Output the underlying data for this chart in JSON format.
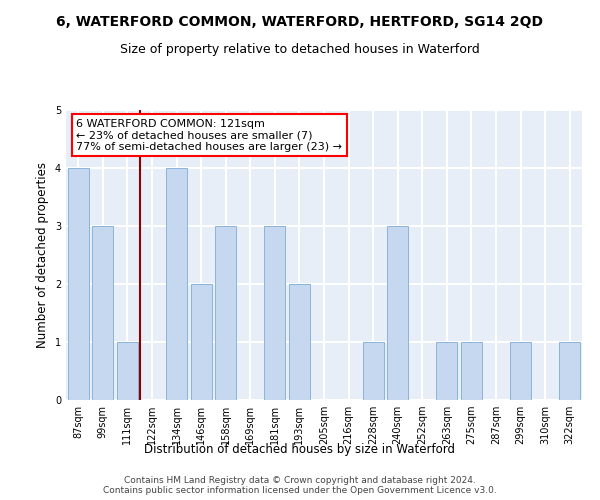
{
  "title": "6, WATERFORD COMMON, WATERFORD, HERTFORD, SG14 2QD",
  "subtitle": "Size of property relative to detached houses in Waterford",
  "xlabel": "Distribution of detached houses by size in Waterford",
  "ylabel": "Number of detached properties",
  "footer_line1": "Contains HM Land Registry data © Crown copyright and database right 2024.",
  "footer_line2": "Contains public sector information licensed under the Open Government Licence v3.0.",
  "categories": [
    "87sqm",
    "99sqm",
    "111sqm",
    "122sqm",
    "134sqm",
    "146sqm",
    "158sqm",
    "169sqm",
    "181sqm",
    "193sqm",
    "205sqm",
    "216sqm",
    "228sqm",
    "240sqm",
    "252sqm",
    "263sqm",
    "275sqm",
    "287sqm",
    "299sqm",
    "310sqm",
    "322sqm"
  ],
  "values": [
    4,
    3,
    1,
    0,
    4,
    2,
    3,
    0,
    3,
    2,
    0,
    0,
    1,
    3,
    0,
    1,
    1,
    0,
    1,
    0,
    1
  ],
  "bar_color": "#c5d8f0",
  "bar_edge_color": "#8ab4d8",
  "annotation_text": "6 WATERFORD COMMON: 121sqm\n← 23% of detached houses are smaller (7)\n77% of semi-detached houses are larger (23) →",
  "annotation_box_color": "white",
  "annotation_box_edge_color": "red",
  "vline_color": "#8b0000",
  "vline_x": 2.5,
  "ylim": [
    0,
    5
  ],
  "yticks": [
    0,
    1,
    2,
    3,
    4,
    5
  ],
  "bg_color": "#e8eef7",
  "grid_color": "white",
  "title_fontsize": 10,
  "subtitle_fontsize": 9,
  "ylabel_fontsize": 8.5,
  "xlabel_fontsize": 8.5,
  "tick_fontsize": 7,
  "annotation_fontsize": 8,
  "footer_fontsize": 6.5
}
